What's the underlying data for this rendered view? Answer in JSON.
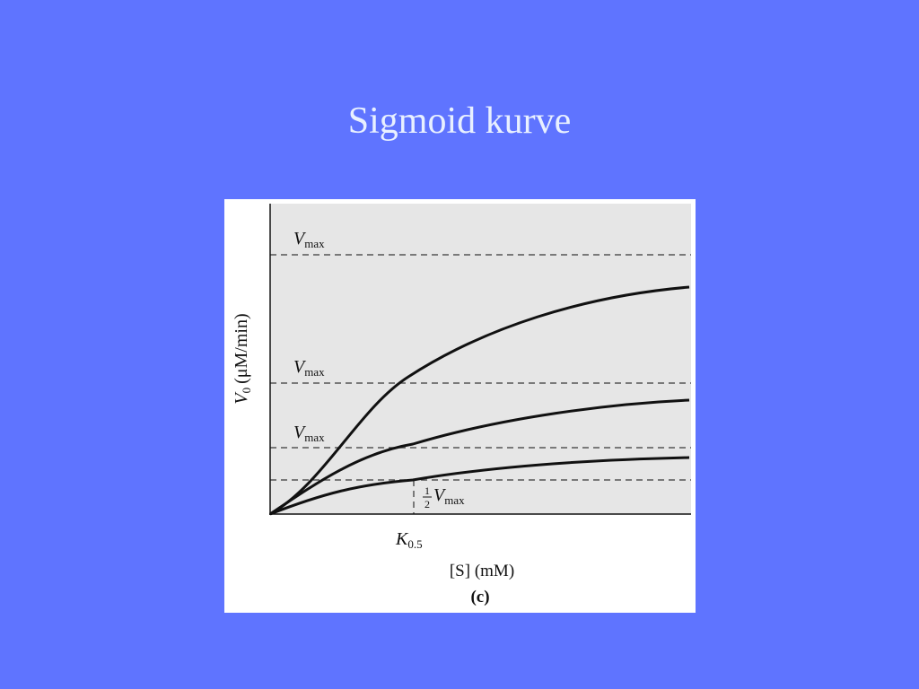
{
  "slide": {
    "title": "Sigmoid kurve"
  },
  "figure": {
    "y_axis_label": {
      "symbol": "V",
      "subscript": "0",
      "unit": "(μM/min)"
    },
    "x_axis_label": "[S] (mM)",
    "vmax_labels": [
      {
        "symbol": "V",
        "subscript": "max"
      },
      {
        "symbol": "V",
        "subscript": "max"
      },
      {
        "symbol": "V",
        "subscript": "max"
      }
    ],
    "half_vmax_label": {
      "numerator": "1",
      "denominator": "2",
      "symbol": "V",
      "subscript": "max"
    },
    "k_label": {
      "symbol": "K",
      "subscript": "0.5"
    },
    "panel_label": "(c)"
  }
}
